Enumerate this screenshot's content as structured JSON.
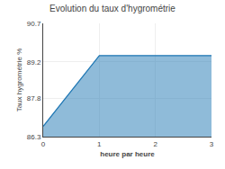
{
  "chart_data": {
    "type": "area",
    "title": "Evolution du taux d'hygrométrie",
    "xlabel": "heure par heure",
    "ylabel": "Taux hygrométrie %",
    "x": [
      0,
      1,
      2,
      3
    ],
    "values": [
      86.7,
      89.45,
      89.45,
      89.45
    ],
    "xlim": [
      0,
      3
    ],
    "ylim": [
      86.3,
      90.7
    ],
    "xticks": [
      0,
      1,
      2,
      3
    ],
    "yticks": [
      86.3,
      87.8,
      89.2,
      90.7
    ],
    "grid": true
  }
}
